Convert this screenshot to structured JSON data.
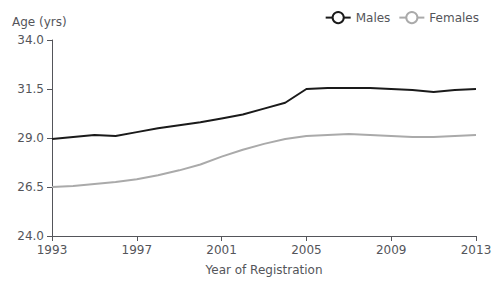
{
  "chart_data": {
    "type": "line",
    "xlabel": "Year of Registration",
    "ylabel": "Age (yrs)",
    "x": [
      1993,
      1994,
      1995,
      1996,
      1997,
      1998,
      1999,
      2000,
      2001,
      2002,
      2003,
      2004,
      2005,
      2006,
      2007,
      2008,
      2009,
      2010,
      2011,
      2012,
      2013
    ],
    "series": [
      {
        "name": "Males",
        "color": "#1a1a1a",
        "values": [
          28.95,
          29.05,
          29.15,
          29.1,
          29.3,
          29.5,
          29.65,
          29.8,
          30.0,
          30.2,
          30.5,
          30.8,
          31.5,
          31.55,
          31.55,
          31.55,
          31.5,
          31.45,
          31.35,
          31.45,
          31.5
        ]
      },
      {
        "name": "Females",
        "color": "#aaaaaa",
        "values": [
          26.5,
          26.55,
          26.65,
          26.75,
          26.9,
          27.1,
          27.35,
          27.65,
          28.05,
          28.4,
          28.7,
          28.95,
          29.1,
          29.15,
          29.2,
          29.15,
          29.1,
          29.05,
          29.05,
          29.1,
          29.15
        ]
      }
    ],
    "xlim": [
      1993,
      2013
    ],
    "ylim": [
      24.0,
      34.0
    ],
    "xticks": [
      1993,
      1997,
      2001,
      2005,
      2009,
      2013
    ],
    "yticks": [
      {
        "value": 24.0,
        "label": "24.0"
      },
      26.5,
      {
        "value": 29.0,
        "label": "29.0"
      },
      31.5,
      {
        "value": 34.0,
        "label": "34.0"
      }
    ],
    "grid": false,
    "legend": "upper right"
  }
}
